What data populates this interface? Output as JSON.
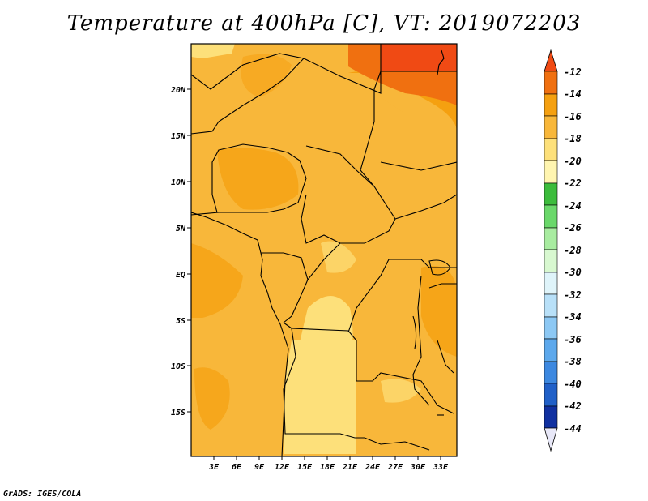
{
  "title": "Temperature at 400hPa [C], VT: 2019072203",
  "credit": "GrADS: IGES/COLA",
  "map": {
    "lat_labels": [
      "20N",
      "15N",
      "10N",
      "5N",
      "EQ",
      "5S",
      "10S",
      "15S"
    ],
    "lon_labels": [
      "3E",
      "6E",
      "9E",
      "12E",
      "15E",
      "18E",
      "21E",
      "24E",
      "27E",
      "30E",
      "33E"
    ]
  },
  "colorbar": {
    "labels": [
      "-12",
      "-14",
      "-16",
      "-18",
      "-20",
      "-22",
      "-24",
      "-26",
      "-28",
      "-30",
      "-32",
      "-34",
      "-36",
      "-38",
      "-40",
      "-42",
      "-44"
    ],
    "colors": {
      "above_-12": "#f04a14",
      "-14_-12": "#f07010",
      "-16_-14": "#f5a010",
      "-18_-16": "#f8b73a",
      "-20_-18": "#fde07a",
      "-22_-20": "#fff5b0",
      "-24_-22": "#3cbc3c",
      "-26_-24": "#6ad86a",
      "-28_-26": "#a8eca0",
      "-30_-28": "#d8f8d0",
      "-32_-30": "#dff4fa",
      "-34_-32": "#b8e0f8",
      "-36_-34": "#8cc8f4",
      "-38_-36": "#5ca8ec",
      "-40_-38": "#3c88e0",
      "-42_-40": "#2060c8",
      "-44_-42": "#1030a0",
      "below_-44": "#0a1460"
    }
  }
}
